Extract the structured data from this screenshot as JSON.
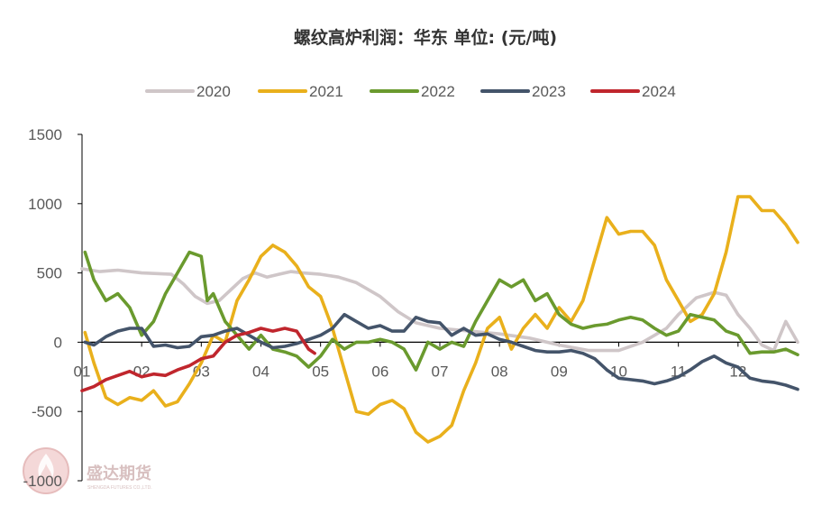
{
  "chart_data": {
    "type": "line",
    "title": "螺纹高炉利润：华东  单位: (元/吨)",
    "xlabel": "",
    "ylabel": "",
    "ylim": [
      -1000,
      1500
    ],
    "yticks": [
      1500,
      1000,
      500,
      0,
      -500,
      -1000
    ],
    "x_categories": [
      "01",
      "02",
      "03",
      "04",
      "05",
      "06",
      "07",
      "08",
      "09",
      "10",
      "11",
      "12"
    ],
    "xlim": [
      1,
      13
    ],
    "grid": false,
    "legend_position": "top",
    "series": [
      {
        "name": "2020",
        "color": "#cfc6c8",
        "points": [
          [
            1.0,
            530
          ],
          [
            1.3,
            510
          ],
          [
            1.6,
            520
          ],
          [
            2.0,
            500
          ],
          [
            2.5,
            490
          ],
          [
            2.7,
            420
          ],
          [
            2.9,
            330
          ],
          [
            3.1,
            280
          ],
          [
            3.3,
            300
          ],
          [
            3.5,
            380
          ],
          [
            3.7,
            460
          ],
          [
            3.9,
            500
          ],
          [
            4.1,
            470
          ],
          [
            4.3,
            490
          ],
          [
            4.5,
            510
          ],
          [
            4.7,
            500
          ],
          [
            5.0,
            490
          ],
          [
            5.3,
            470
          ],
          [
            5.6,
            430
          ],
          [
            6.0,
            330
          ],
          [
            6.3,
            220
          ],
          [
            6.6,
            140
          ],
          [
            7.0,
            100
          ],
          [
            7.5,
            80
          ],
          [
            8.0,
            60
          ],
          [
            8.5,
            30
          ],
          [
            9.0,
            -20
          ],
          [
            9.5,
            -60
          ],
          [
            10.0,
            -60
          ],
          [
            10.4,
            0
          ],
          [
            10.8,
            100
          ],
          [
            11.0,
            200
          ],
          [
            11.3,
            320
          ],
          [
            11.6,
            360
          ],
          [
            11.8,
            340
          ],
          [
            12.0,
            200
          ],
          [
            12.2,
            100
          ],
          [
            12.4,
            -20
          ],
          [
            12.6,
            -60
          ],
          [
            12.8,
            150
          ],
          [
            13.0,
            0
          ]
        ]
      },
      {
        "name": "2021",
        "color": "#e9b01c",
        "points": [
          [
            1.05,
            70
          ],
          [
            1.2,
            -150
          ],
          [
            1.4,
            -400
          ],
          [
            1.6,
            -450
          ],
          [
            1.8,
            -400
          ],
          [
            2.0,
            -420
          ],
          [
            2.2,
            -350
          ],
          [
            2.4,
            -460
          ],
          [
            2.6,
            -430
          ],
          [
            2.8,
            -300
          ],
          [
            3.0,
            -150
          ],
          [
            3.2,
            50
          ],
          [
            3.4,
            0
          ],
          [
            3.6,
            300
          ],
          [
            3.8,
            450
          ],
          [
            4.0,
            620
          ],
          [
            4.2,
            700
          ],
          [
            4.4,
            650
          ],
          [
            4.6,
            550
          ],
          [
            4.8,
            400
          ],
          [
            5.0,
            330
          ],
          [
            5.2,
            100
          ],
          [
            5.4,
            -200
          ],
          [
            5.6,
            -500
          ],
          [
            5.8,
            -520
          ],
          [
            6.0,
            -450
          ],
          [
            6.2,
            -420
          ],
          [
            6.4,
            -480
          ],
          [
            6.6,
            -650
          ],
          [
            6.8,
            -720
          ],
          [
            7.0,
            -680
          ],
          [
            7.2,
            -600
          ],
          [
            7.4,
            -350
          ],
          [
            7.6,
            -150
          ],
          [
            7.8,
            100
          ],
          [
            8.0,
            180
          ],
          [
            8.2,
            -50
          ],
          [
            8.4,
            100
          ],
          [
            8.6,
            200
          ],
          [
            8.8,
            100
          ],
          [
            9.0,
            250
          ],
          [
            9.2,
            150
          ],
          [
            9.4,
            300
          ],
          [
            9.6,
            600
          ],
          [
            9.8,
            900
          ],
          [
            10.0,
            780
          ],
          [
            10.2,
            800
          ],
          [
            10.4,
            800
          ],
          [
            10.6,
            700
          ],
          [
            10.8,
            450
          ],
          [
            11.0,
            300
          ],
          [
            11.2,
            150
          ],
          [
            11.4,
            200
          ],
          [
            11.6,
            350
          ],
          [
            11.8,
            650
          ],
          [
            12.0,
            1050
          ],
          [
            12.2,
            1050
          ],
          [
            12.4,
            950
          ],
          [
            12.6,
            950
          ],
          [
            12.8,
            850
          ],
          [
            13.0,
            720
          ]
        ]
      },
      {
        "name": "2022",
        "color": "#6a9a2e",
        "points": [
          [
            1.05,
            650
          ],
          [
            1.2,
            450
          ],
          [
            1.4,
            300
          ],
          [
            1.6,
            350
          ],
          [
            1.8,
            250
          ],
          [
            2.0,
            50
          ],
          [
            2.2,
            150
          ],
          [
            2.4,
            350
          ],
          [
            2.6,
            500
          ],
          [
            2.8,
            650
          ],
          [
            3.0,
            620
          ],
          [
            3.1,
            300
          ],
          [
            3.2,
            350
          ],
          [
            3.3,
            250
          ],
          [
            3.4,
            150
          ],
          [
            3.6,
            50
          ],
          [
            3.8,
            -50
          ],
          [
            4.0,
            50
          ],
          [
            4.2,
            -50
          ],
          [
            4.4,
            -70
          ],
          [
            4.6,
            -100
          ],
          [
            4.8,
            -180
          ],
          [
            5.0,
            -100
          ],
          [
            5.2,
            20
          ],
          [
            5.4,
            -50
          ],
          [
            5.6,
            0
          ],
          [
            5.8,
            0
          ],
          [
            6.0,
            20
          ],
          [
            6.2,
            0
          ],
          [
            6.4,
            -50
          ],
          [
            6.6,
            -200
          ],
          [
            6.8,
            0
          ],
          [
            7.0,
            -50
          ],
          [
            7.2,
            0
          ],
          [
            7.4,
            -30
          ],
          [
            7.6,
            150
          ],
          [
            7.8,
            300
          ],
          [
            8.0,
            450
          ],
          [
            8.2,
            400
          ],
          [
            8.4,
            450
          ],
          [
            8.6,
            300
          ],
          [
            8.8,
            350
          ],
          [
            9.0,
            200
          ],
          [
            9.2,
            130
          ],
          [
            9.4,
            100
          ],
          [
            9.6,
            120
          ],
          [
            9.8,
            130
          ],
          [
            10.0,
            160
          ],
          [
            10.2,
            180
          ],
          [
            10.4,
            160
          ],
          [
            10.6,
            100
          ],
          [
            10.8,
            50
          ],
          [
            11.0,
            80
          ],
          [
            11.2,
            200
          ],
          [
            11.4,
            180
          ],
          [
            11.6,
            160
          ],
          [
            11.8,
            80
          ],
          [
            12.0,
            50
          ],
          [
            12.2,
            -80
          ],
          [
            12.4,
            -70
          ],
          [
            12.6,
            -70
          ],
          [
            12.8,
            -50
          ],
          [
            13.0,
            -90
          ]
        ]
      },
      {
        "name": "2023",
        "color": "#44546a",
        "points": [
          [
            1.05,
            0
          ],
          [
            1.2,
            -20
          ],
          [
            1.4,
            40
          ],
          [
            1.6,
            80
          ],
          [
            1.8,
            100
          ],
          [
            2.0,
            100
          ],
          [
            2.2,
            -30
          ],
          [
            2.4,
            -20
          ],
          [
            2.6,
            -40
          ],
          [
            2.8,
            -30
          ],
          [
            3.0,
            40
          ],
          [
            3.2,
            50
          ],
          [
            3.4,
            80
          ],
          [
            3.6,
            100
          ],
          [
            3.8,
            50
          ],
          [
            4.0,
            0
          ],
          [
            4.2,
            -40
          ],
          [
            4.4,
            -30
          ],
          [
            4.6,
            -10
          ],
          [
            4.8,
            20
          ],
          [
            5.0,
            50
          ],
          [
            5.2,
            100
          ],
          [
            5.4,
            200
          ],
          [
            5.6,
            150
          ],
          [
            5.8,
            100
          ],
          [
            6.0,
            120
          ],
          [
            6.2,
            80
          ],
          [
            6.4,
            80
          ],
          [
            6.6,
            180
          ],
          [
            6.8,
            150
          ],
          [
            7.0,
            140
          ],
          [
            7.2,
            50
          ],
          [
            7.4,
            100
          ],
          [
            7.6,
            50
          ],
          [
            7.8,
            60
          ],
          [
            8.0,
            20
          ],
          [
            8.2,
            0
          ],
          [
            8.4,
            -30
          ],
          [
            8.6,
            -60
          ],
          [
            8.8,
            -70
          ],
          [
            9.0,
            -70
          ],
          [
            9.2,
            -60
          ],
          [
            9.4,
            -80
          ],
          [
            9.6,
            -120
          ],
          [
            9.8,
            -200
          ],
          [
            10.0,
            -260
          ],
          [
            10.2,
            -270
          ],
          [
            10.4,
            -280
          ],
          [
            10.6,
            -300
          ],
          [
            10.8,
            -280
          ],
          [
            11.0,
            -250
          ],
          [
            11.2,
            -200
          ],
          [
            11.4,
            -140
          ],
          [
            11.6,
            -100
          ],
          [
            11.8,
            -150
          ],
          [
            12.0,
            -180
          ],
          [
            12.2,
            -260
          ],
          [
            12.4,
            -280
          ],
          [
            12.6,
            -290
          ],
          [
            12.8,
            -310
          ],
          [
            13.0,
            -340
          ]
        ]
      },
      {
        "name": "2024",
        "color": "#c0262d",
        "points": [
          [
            1.0,
            -350
          ],
          [
            1.2,
            -320
          ],
          [
            1.4,
            -270
          ],
          [
            1.6,
            -240
          ],
          [
            1.8,
            -210
          ],
          [
            2.0,
            -250
          ],
          [
            2.2,
            -230
          ],
          [
            2.4,
            -240
          ],
          [
            2.6,
            -200
          ],
          [
            2.8,
            -170
          ],
          [
            3.0,
            -120
          ],
          [
            3.2,
            -100
          ],
          [
            3.4,
            0
          ],
          [
            3.6,
            50
          ],
          [
            3.8,
            70
          ],
          [
            4.0,
            100
          ],
          [
            4.2,
            80
          ],
          [
            4.4,
            100
          ],
          [
            4.6,
            80
          ],
          [
            4.8,
            -50
          ],
          [
            4.9,
            -80
          ]
        ]
      }
    ]
  },
  "watermark": {
    "brand": "盛达期货",
    "subtitle": "SHENGDA FUTURES CO.,LTD."
  }
}
